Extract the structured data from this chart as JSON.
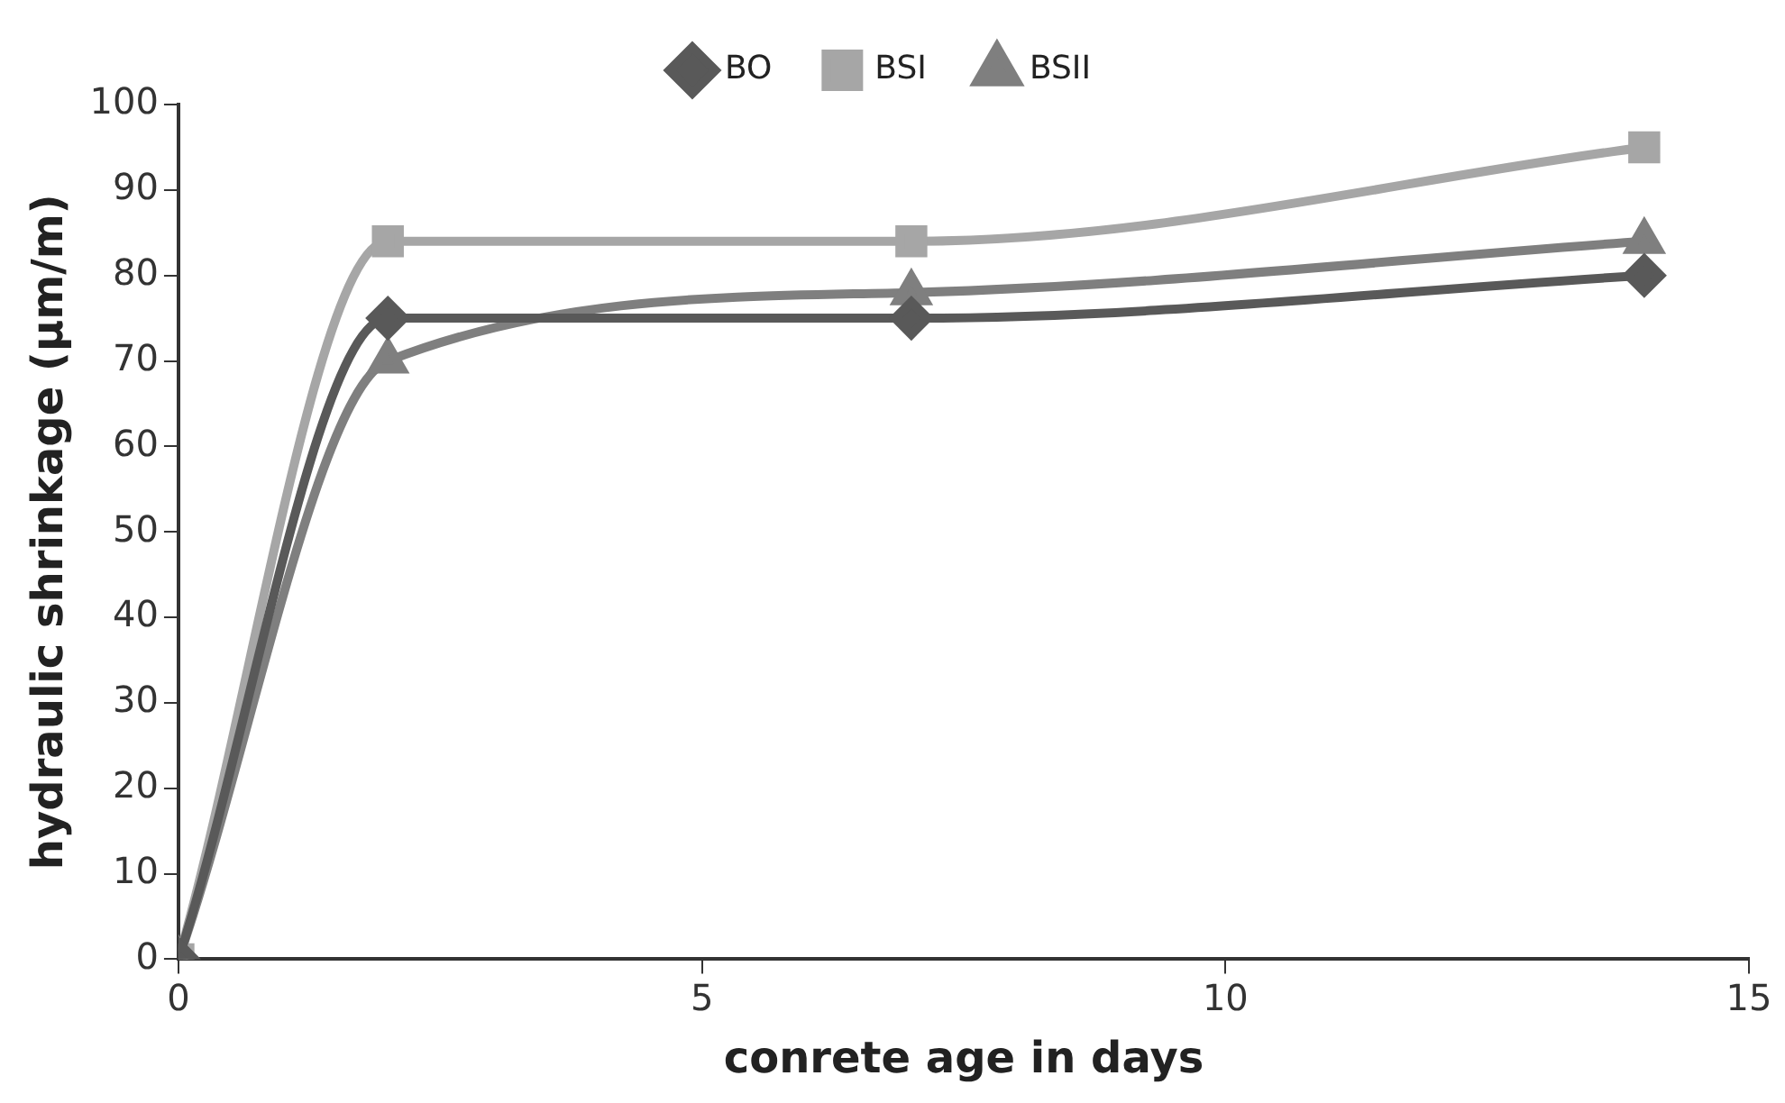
{
  "chart_data": {
    "type": "line",
    "xlabel": "conrete age in days",
    "ylabel": "hydraulic shrinkage (µm/m)",
    "x": [
      0,
      2,
      7,
      14
    ],
    "series": [
      {
        "name": "BO",
        "color": "#595959",
        "values": [
          0,
          75,
          75,
          80
        ],
        "marker": "diamond"
      },
      {
        "name": "BSI",
        "color": "#a6a6a6",
        "values": [
          0,
          84,
          84,
          95
        ],
        "marker": "square"
      },
      {
        "name": "BSII",
        "color": "#7f7f7f",
        "values": [
          0,
          70,
          78,
          84
        ],
        "marker": "triangle"
      }
    ],
    "xlim": [
      0,
      15
    ],
    "xticks": [
      0,
      5,
      10,
      15
    ],
    "ylim": [
      0,
      100
    ],
    "yticks": [
      0,
      10,
      20,
      30,
      40,
      50,
      60,
      70,
      80,
      90,
      100
    ],
    "grid": false,
    "legend": "top",
    "line_style": "solid"
  }
}
